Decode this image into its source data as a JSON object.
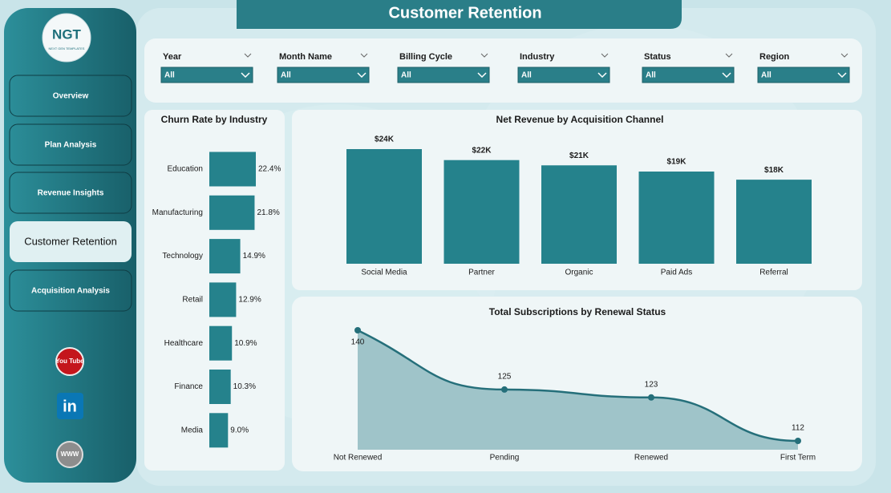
{
  "header": {
    "title": "Customer Retention"
  },
  "logo": {
    "text": "NGT",
    "tagline": "NEXT GEN TEMPLATES"
  },
  "nav": [
    {
      "label": "Overview",
      "active": false
    },
    {
      "label": "Plan Analysis",
      "active": false
    },
    {
      "label": "Revenue Insights",
      "active": false
    },
    {
      "label": "Customer Retention",
      "active": true
    },
    {
      "label": "Acquisition Analysis",
      "active": false
    }
  ],
  "social": [
    "You Tube",
    "in",
    "WWW"
  ],
  "filters": [
    {
      "label": "Year",
      "value": "All"
    },
    {
      "label": "Month Name",
      "value": "All"
    },
    {
      "label": "Billing Cycle",
      "value": "All"
    },
    {
      "label": "Industry",
      "value": "All"
    },
    {
      "label": "Status",
      "value": "All"
    },
    {
      "label": "Region",
      "value": "All"
    }
  ],
  "chart_data": [
    {
      "type": "hbar",
      "title": "Churn Rate by Industry",
      "categories": [
        "Education",
        "Manufacturing",
        "Technology",
        "Retail",
        "Healthcare",
        "Finance",
        "Media"
      ],
      "values": [
        22.4,
        21.8,
        14.9,
        12.9,
        10.9,
        10.3,
        9.0
      ],
      "value_labels": [
        "22.4%",
        "21.8%",
        "14.9%",
        "12.9%",
        "10.9%",
        "10.3%",
        "9.0%"
      ],
      "color": "#25828c"
    },
    {
      "type": "bar",
      "title": "Net Revenue by Acquisition Channel",
      "categories": [
        "Social Media",
        "Partner",
        "Organic",
        "Paid Ads",
        "Referral"
      ],
      "values": [
        24000,
        21700,
        20600,
        19300,
        17600
      ],
      "value_labels": [
        "$24K",
        "$22K",
        "$21K",
        "$19K",
        "$18K"
      ],
      "color": "#25828c"
    },
    {
      "type": "area",
      "title": "Total Subscriptions by Renewal Status",
      "categories": [
        "Not Renewed",
        "Pending",
        "Renewed",
        "First Term"
      ],
      "values": [
        140,
        125,
        123,
        112
      ],
      "color": "#256f7a",
      "fill_color": "#9fc4c9"
    }
  ]
}
